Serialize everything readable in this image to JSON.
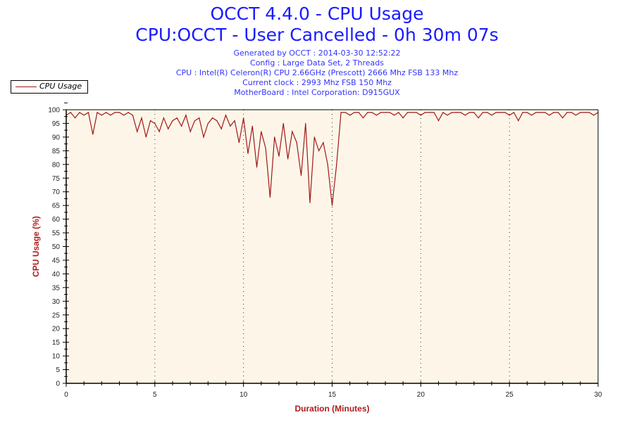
{
  "header": {
    "title": "OCCT 4.4.0 - CPU Usage",
    "subtitle": "CPU:OCCT - User Cancelled - 0h 30m 07s",
    "info": [
      "Generated by OCCT : 2014-03-30 12:52:22",
      "Config : Large Data Set, 2 Threads",
      "CPU : Intel(R) Celeron(R) CPU 2.66GHz (Prescott) 2666 Mhz FSB 133 Mhz",
      "Current clock : 2993 Mhz FSB 150 Mhz",
      "MotherBoard : Intel Corporation: D915GUX"
    ]
  },
  "chart_data": {
    "type": "line",
    "title": "OCCT 4.4.0 - CPU Usage",
    "xlabel": "Duration (Minutes)",
    "ylabel": "CPU Usage (%)",
    "xlim": [
      0,
      30
    ],
    "ylim": [
      0,
      100
    ],
    "xticks": [
      0,
      5,
      10,
      15,
      20,
      25,
      30
    ],
    "yticks": [
      0,
      5,
      10,
      15,
      20,
      25,
      30,
      35,
      40,
      45,
      50,
      55,
      60,
      65,
      70,
      75,
      80,
      85,
      90,
      95,
      100
    ],
    "legend": {
      "position": "top-left",
      "entries": [
        "CPU Usage"
      ]
    },
    "grid": "vertical dotted at major x ticks",
    "series": [
      {
        "name": "CPU Usage",
        "color": "#a01818",
        "x_step": 0.25,
        "values": [
          98,
          99,
          97,
          99,
          98,
          99,
          91,
          99,
          98,
          99,
          98,
          99,
          99,
          98,
          99,
          98,
          92,
          97,
          90,
          96,
          95,
          92,
          97,
          93,
          96,
          97,
          94,
          98,
          92,
          96,
          97,
          90,
          95,
          97,
          96,
          93,
          98,
          94,
          96,
          88,
          97,
          84,
          94,
          79,
          92,
          86,
          68,
          90,
          83,
          95,
          82,
          92,
          88,
          76,
          95,
          66,
          90,
          85,
          88,
          80,
          65,
          80,
          99,
          99,
          98,
          99,
          99,
          97,
          99,
          99,
          98,
          99,
          99,
          99,
          98,
          99,
          97,
          99,
          99,
          99,
          98,
          99,
          99,
          99,
          96,
          99,
          98,
          99,
          99,
          99,
          98,
          99,
          99,
          97,
          99,
          99,
          98,
          99,
          99,
          99,
          98,
          99,
          96,
          99,
          99,
          98,
          99,
          99,
          99,
          98,
          99,
          99,
          97,
          99,
          99,
          98,
          99,
          99,
          99,
          98,
          99
        ]
      }
    ]
  }
}
